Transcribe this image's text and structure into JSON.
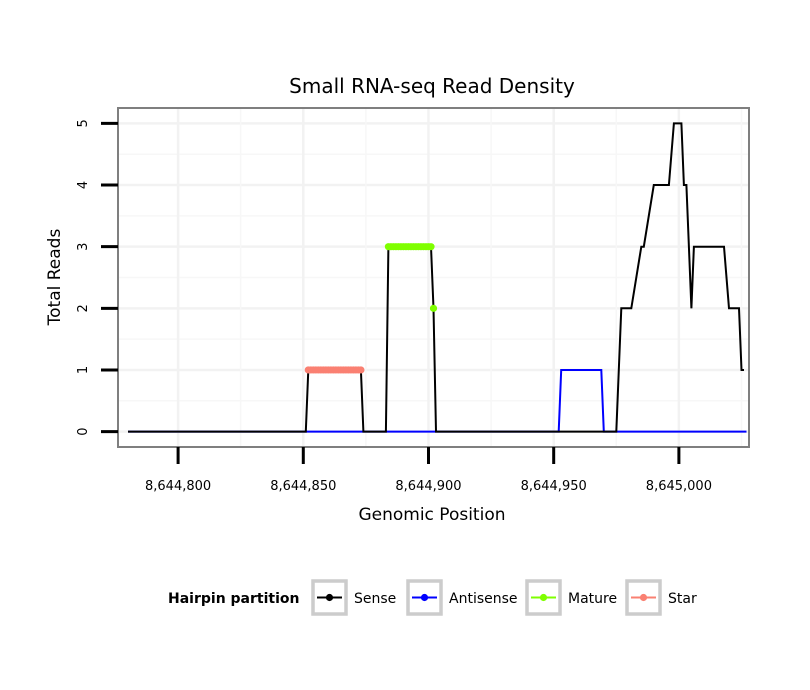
{
  "chart_data": {
    "type": "line",
    "title": "Small RNA-seq Read Density",
    "xlabel": "Genomic Position",
    "ylabel": "Total Reads",
    "xlim": [
      8644776,
      8645028
    ],
    "ylim": [
      -0.25,
      5.25
    ],
    "x_ticks": [
      8644800,
      8644850,
      8644900,
      8644950,
      8645000
    ],
    "x_tick_labels": [
      "8,644,800",
      "8,644,850",
      "8,644,900",
      "8,644,950",
      "8,645,000"
    ],
    "y_ticks": [
      0,
      1,
      2,
      3,
      4,
      5
    ],
    "y_tick_labels": [
      "0",
      "1",
      "2",
      "3",
      "4",
      "5"
    ],
    "legend": {
      "title": "Hairpin partition",
      "position": "bottom",
      "entries": [
        {
          "name": "Sense",
          "color": "#000000"
        },
        {
          "name": "Antisense",
          "color": "#0000ff"
        },
        {
          "name": "Mature",
          "color": "#7fff00"
        },
        {
          "name": "Star",
          "color": "#fa8072"
        }
      ]
    },
    "series": [
      {
        "name": "Sense",
        "color": "#000000",
        "x": [
          8644780,
          8644851,
          8644852,
          8644873,
          8644874,
          8644883,
          8644884,
          8644901,
          8644902,
          8644903,
          8644975,
          8644977,
          8644981,
          8644985,
          8644986,
          8644990,
          8644996,
          8644998,
          8645001,
          8645002,
          8645003,
          8645005,
          8645006,
          8645011,
          8645018,
          8645020,
          8645024,
          8645025,
          8645026
        ],
        "y": [
          0,
          0,
          1,
          1,
          0,
          0,
          3,
          3,
          2,
          0,
          0,
          2,
          2,
          3,
          3,
          4,
          4,
          5,
          5,
          4,
          4,
          2,
          3,
          3,
          3,
          2,
          2,
          1,
          1
        ]
      },
      {
        "name": "Antisense",
        "color": "#0000ff",
        "x": [
          8644780,
          8644952,
          8644953,
          8644969,
          8644970,
          8645027
        ],
        "y": [
          0,
          0,
          1,
          1,
          0,
          0
        ]
      },
      {
        "name": "Mature",
        "color": "#7fff00",
        "x": [
          8644884,
          8644885,
          8644886,
          8644887,
          8644888,
          8644889,
          8644890,
          8644891,
          8644892,
          8644893,
          8644894,
          8644895,
          8644896,
          8644897,
          8644898,
          8644899,
          8644900,
          8644901,
          8644902
        ],
        "y": [
          3,
          3,
          3,
          3,
          3,
          3,
          3,
          3,
          3,
          3,
          3,
          3,
          3,
          3,
          3,
          3,
          3,
          3,
          2
        ]
      },
      {
        "name": "Star",
        "color": "#fa8072",
        "x": [
          8644852,
          8644853,
          8644854,
          8644855,
          8644856,
          8644857,
          8644858,
          8644859,
          8644860,
          8644861,
          8644862,
          8644863,
          8644864,
          8644865,
          8644866,
          8644867,
          8644868,
          8644869,
          8644870,
          8644871,
          8644872,
          8644873
        ],
        "y": [
          1,
          1,
          1,
          1,
          1,
          1,
          1,
          1,
          1,
          1,
          1,
          1,
          1,
          1,
          1,
          1,
          1,
          1,
          1,
          1,
          1,
          1
        ]
      }
    ]
  }
}
